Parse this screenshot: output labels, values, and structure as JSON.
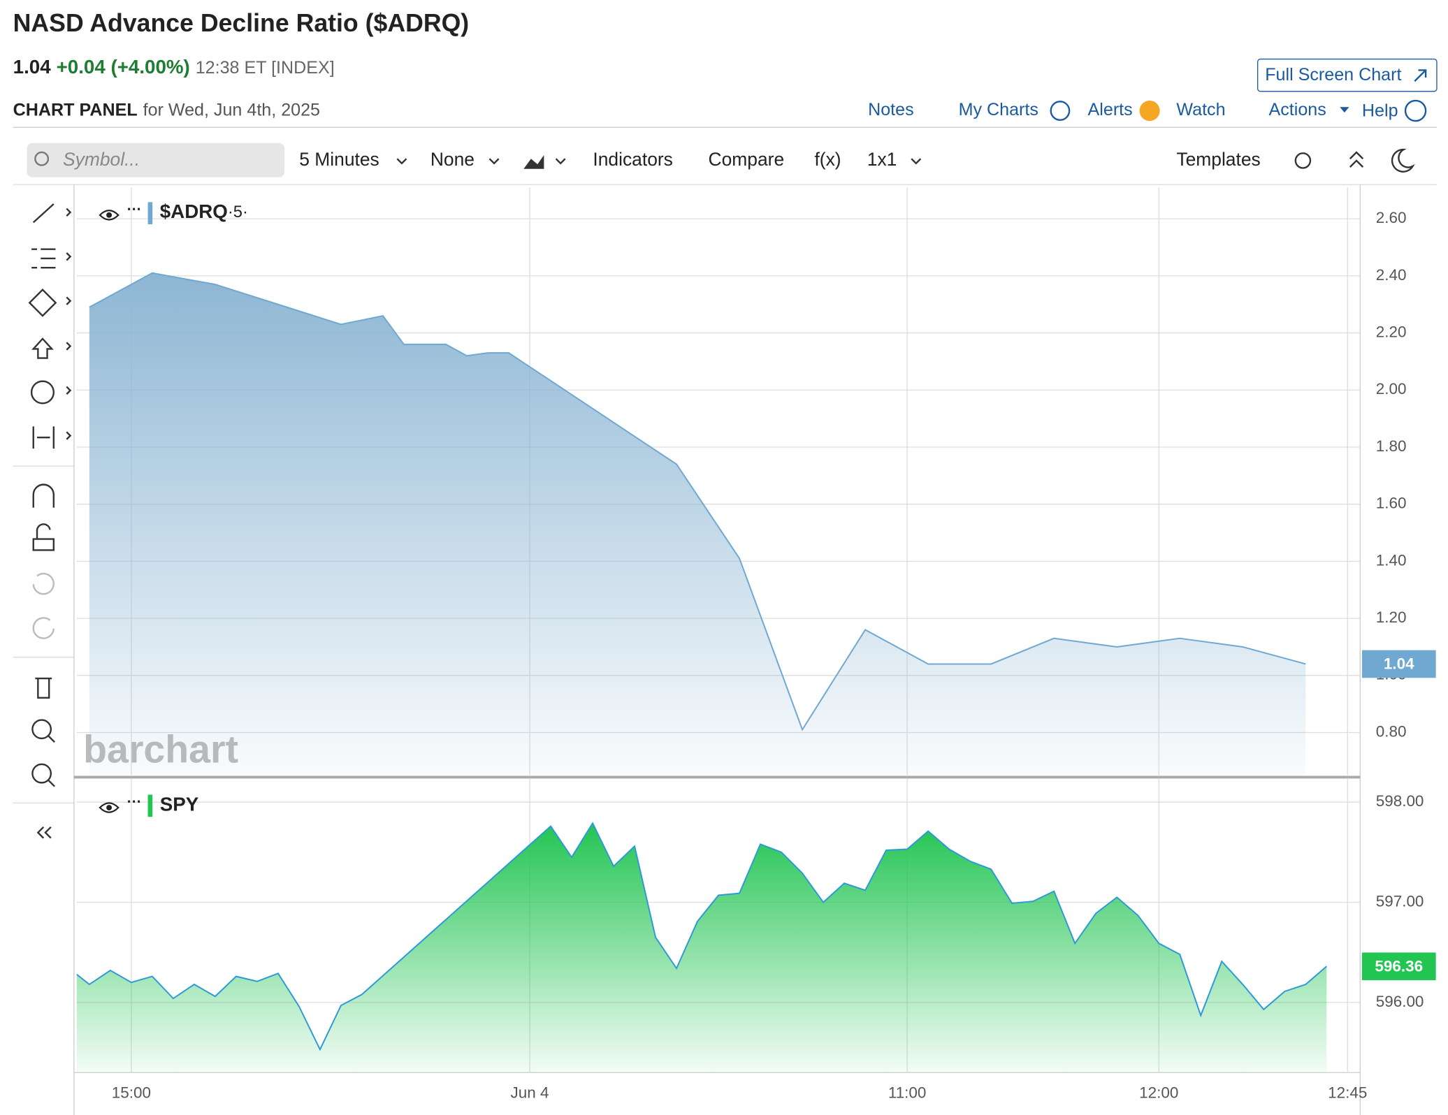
{
  "header": {
    "title": "NASD Advance Decline Ratio ($ADRQ)",
    "price": "1.04",
    "change": "+0.04 (+4.00%)",
    "time_info": "12:38 ET [INDEX]",
    "panel_label": "CHART PANEL",
    "panel_date": "for Wed, Jun 4th, 2025",
    "full_screen": "Full Screen Chart",
    "links": [
      "Notes",
      "My Charts",
      "Alerts",
      "Watch",
      "Actions",
      "Help"
    ]
  },
  "toolbar": {
    "symbol_placeholder": "Symbol...",
    "interval": "5 Minutes",
    "overlay": "None",
    "items": [
      "Indicators",
      "Compare",
      "f(x)"
    ],
    "layout": "1x1",
    "templates": "Templates"
  },
  "watermark": "barchart",
  "chart_data": [
    {
      "type": "area",
      "series": [
        {
          "name": "$ADRQ",
          "interval_label": "·5·",
          "color": "#6fa8d0",
          "values": [
            2.29,
            2.41,
            2.37,
            2.23,
            2.26,
            2.16,
            2.16,
            2.12,
            2.13,
            2.13,
            1.74,
            1.41,
            0.81,
            1.16,
            1.04,
            1.04,
            1.13,
            1.1,
            1.13,
            1.1,
            1.04
          ]
        }
      ],
      "x": [
        -195,
        -180,
        -165,
        -135,
        -125,
        -120,
        -110,
        -105,
        -100,
        -95,
        -55,
        -40,
        -25,
        -10,
        5,
        20,
        35,
        50,
        65,
        80,
        95
      ],
      "ylim": [
        0.65,
        2.71
      ],
      "yticks": [
        {
          "value": 0.8,
          "label": "0.80"
        },
        {
          "value": 1.0,
          "label": "1.00"
        },
        {
          "value": 1.2,
          "label": "1.20"
        },
        {
          "value": 1.4,
          "label": "1.40"
        },
        {
          "value": 1.6,
          "label": "1.60"
        },
        {
          "value": 1.8,
          "label": "1.80"
        },
        {
          "value": 2.0,
          "label": "2.00"
        },
        {
          "value": 2.2,
          "label": "2.20"
        },
        {
          "value": 2.4,
          "label": "2.40"
        },
        {
          "value": 2.6,
          "label": "2.60"
        }
      ],
      "grid": true
    },
    {
      "type": "area",
      "series": [
        {
          "name": "SPY",
          "color": "#22c452",
          "line_color": "#2c9ad8",
          "values": [
            596.28,
            596.18,
            596.32,
            596.2,
            596.26,
            596.04,
            596.18,
            596.06,
            596.26,
            596.21,
            596.29,
            595.96,
            595.53,
            595.97,
            596.08,
            597.76,
            597.45,
            597.79,
            597.36,
            597.56,
            596.65,
            596.34,
            596.81,
            597.07,
            597.09,
            597.58,
            597.5,
            597.29,
            597.0,
            597.19,
            597.12,
            597.52,
            597.53,
            597.71,
            597.53,
            597.41,
            597.33,
            596.99,
            597.01,
            597.11,
            596.59,
            596.89,
            597.05,
            596.87,
            596.59,
            596.48,
            595.87,
            596.41,
            596.18,
            595.93,
            596.11,
            596.18,
            596.36
          ]
        }
      ],
      "x": [
        -198,
        -195,
        -190,
        -185,
        -180,
        -175,
        -170,
        -165,
        -160,
        -155,
        -150,
        -145,
        -140,
        -135,
        -130,
        -85,
        -80,
        -75,
        -70,
        -65,
        -60,
        -55,
        -50,
        -45,
        -40,
        -35,
        -30,
        -25,
        -20,
        -15,
        -10,
        -5,
        0,
        5,
        10,
        15,
        20,
        25,
        30,
        35,
        40,
        45,
        50,
        55,
        60,
        65,
        70,
        75,
        80,
        85,
        90,
        95,
        100
      ],
      "xlim": [
        -198,
        108
      ],
      "xticks": [
        {
          "value": -185,
          "label": "15:00"
        },
        {
          "value": -90,
          "label": "Jun 4"
        },
        {
          "value": 0,
          "label": "11:00"
        },
        {
          "value": 60,
          "label": "12:00"
        },
        {
          "value": 105,
          "label": "12:45"
        }
      ],
      "ylim": [
        595.3,
        598.24
      ],
      "yticks": [
        {
          "value": 596,
          "label": "596.00"
        },
        {
          "value": 597,
          "label": "597.00"
        },
        {
          "value": 598,
          "label": "598.00"
        }
      ],
      "grid": true
    }
  ]
}
